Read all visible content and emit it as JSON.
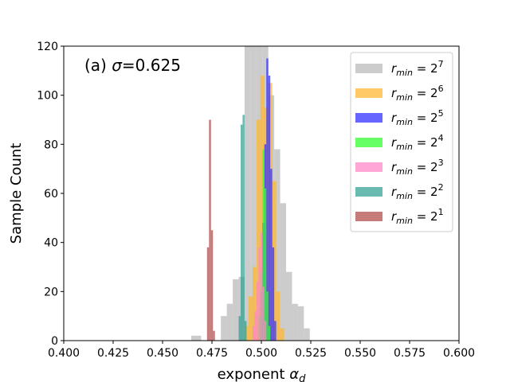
{
  "chart_data": {
    "type": "histogram",
    "annotation": "(a) σ=0.625",
    "xlabel": "exponent α_d",
    "ylabel": "Sample Count",
    "xlim": [
      0.4,
      0.6
    ],
    "ylim": [
      0,
      120
    ],
    "xticks": [
      "0.400",
      "0.425",
      "0.450",
      "0.475",
      "0.500",
      "0.525",
      "0.550",
      "0.575",
      "0.600"
    ],
    "yticks": [
      "0",
      "20",
      "40",
      "60",
      "80",
      "100",
      "120"
    ],
    "legend_position": "upper right",
    "series": [
      {
        "name": "r_min = 2^7",
        "base": "r",
        "sub": "min",
        "exp": "7",
        "color": "#bbbbbb",
        "alpha": 0.75,
        "bins": [
          [
            0.4645,
            0.4695,
            2
          ],
          [
            0.4795,
            0.4825,
            10
          ],
          [
            0.4825,
            0.4855,
            15
          ],
          [
            0.4855,
            0.4885,
            25
          ],
          [
            0.4885,
            0.4915,
            26
          ],
          [
            0.4915,
            0.4945,
            120
          ],
          [
            0.4945,
            0.4975,
            120
          ],
          [
            0.4975,
            0.5005,
            120
          ],
          [
            0.5005,
            0.5035,
            120
          ],
          [
            0.5035,
            0.5065,
            100
          ],
          [
            0.5065,
            0.5095,
            78
          ],
          [
            0.5095,
            0.5125,
            56
          ],
          [
            0.5125,
            0.5155,
            28
          ],
          [
            0.5155,
            0.5185,
            15
          ],
          [
            0.5185,
            0.5215,
            14
          ],
          [
            0.5215,
            0.5245,
            5
          ]
        ]
      },
      {
        "name": "r_min = 2^6",
        "base": "r",
        "sub": "min",
        "exp": "6",
        "color": "#ffb833",
        "alpha": 0.75,
        "bins": [
          [
            0.4915,
            0.4935,
            6
          ],
          [
            0.4935,
            0.4955,
            18
          ],
          [
            0.4955,
            0.4975,
            30
          ],
          [
            0.4975,
            0.4995,
            90
          ],
          [
            0.4995,
            0.5015,
            108
          ],
          [
            0.5015,
            0.5035,
            95
          ],
          [
            0.5035,
            0.5055,
            105
          ],
          [
            0.5055,
            0.5075,
            65
          ],
          [
            0.5075,
            0.5095,
            20
          ],
          [
            0.5095,
            0.5115,
            5
          ]
        ]
      },
      {
        "name": "r_min = 2^5",
        "base": "r",
        "sub": "min",
        "exp": "5",
        "color": "#3333ff",
        "alpha": 0.75,
        "bins": [
          [
            0.4995,
            0.5005,
            20
          ],
          [
            0.5005,
            0.5015,
            48
          ],
          [
            0.5015,
            0.5025,
            80
          ],
          [
            0.5025,
            0.5035,
            115
          ],
          [
            0.5035,
            0.5045,
            108
          ],
          [
            0.5045,
            0.5055,
            70
          ],
          [
            0.5055,
            0.5065,
            38
          ],
          [
            0.5065,
            0.5075,
            8
          ]
        ]
      },
      {
        "name": "r_min = 2^4",
        "base": "r",
        "sub": "min",
        "exp": "4",
        "color": "#33ff33",
        "alpha": 0.75,
        "bins": [
          [
            0.4985,
            0.4995,
            10
          ],
          [
            0.4995,
            0.5005,
            28
          ],
          [
            0.5005,
            0.5015,
            78
          ],
          [
            0.5015,
            0.5025,
            62
          ],
          [
            0.5025,
            0.5035,
            20
          ],
          [
            0.5035,
            0.5045,
            6
          ]
        ]
      },
      {
        "name": "r_min = 2^3",
        "base": "r",
        "sub": "min",
        "exp": "3",
        "color": "#ff88c8",
        "alpha": 0.75,
        "bins": [
          [
            0.4955,
            0.4965,
            6
          ],
          [
            0.4965,
            0.4975,
            12
          ],
          [
            0.4975,
            0.4985,
            24
          ],
          [
            0.4985,
            0.4995,
            38
          ],
          [
            0.4995,
            0.5005,
            44
          ],
          [
            0.5005,
            0.5015,
            22
          ],
          [
            0.5015,
            0.5025,
            8
          ]
        ]
      },
      {
        "name": "r_min = 2^2",
        "base": "r",
        "sub": "min",
        "exp": "2",
        "color": "#2a9d8f",
        "alpha": 0.7,
        "bins": [
          [
            0.4885,
            0.4895,
            10
          ],
          [
            0.4895,
            0.4905,
            88
          ],
          [
            0.4905,
            0.4915,
            92
          ],
          [
            0.4915,
            0.4925,
            8
          ]
        ]
      },
      {
        "name": "r_min = 2^1",
        "base": "r",
        "sub": "min",
        "exp": "1",
        "color": "#b34d4d",
        "alpha": 0.75,
        "bins": [
          [
            0.4725,
            0.4735,
            38
          ],
          [
            0.4735,
            0.4745,
            90
          ],
          [
            0.4745,
            0.4755,
            45
          ],
          [
            0.4755,
            0.4765,
            4
          ]
        ]
      }
    ]
  }
}
